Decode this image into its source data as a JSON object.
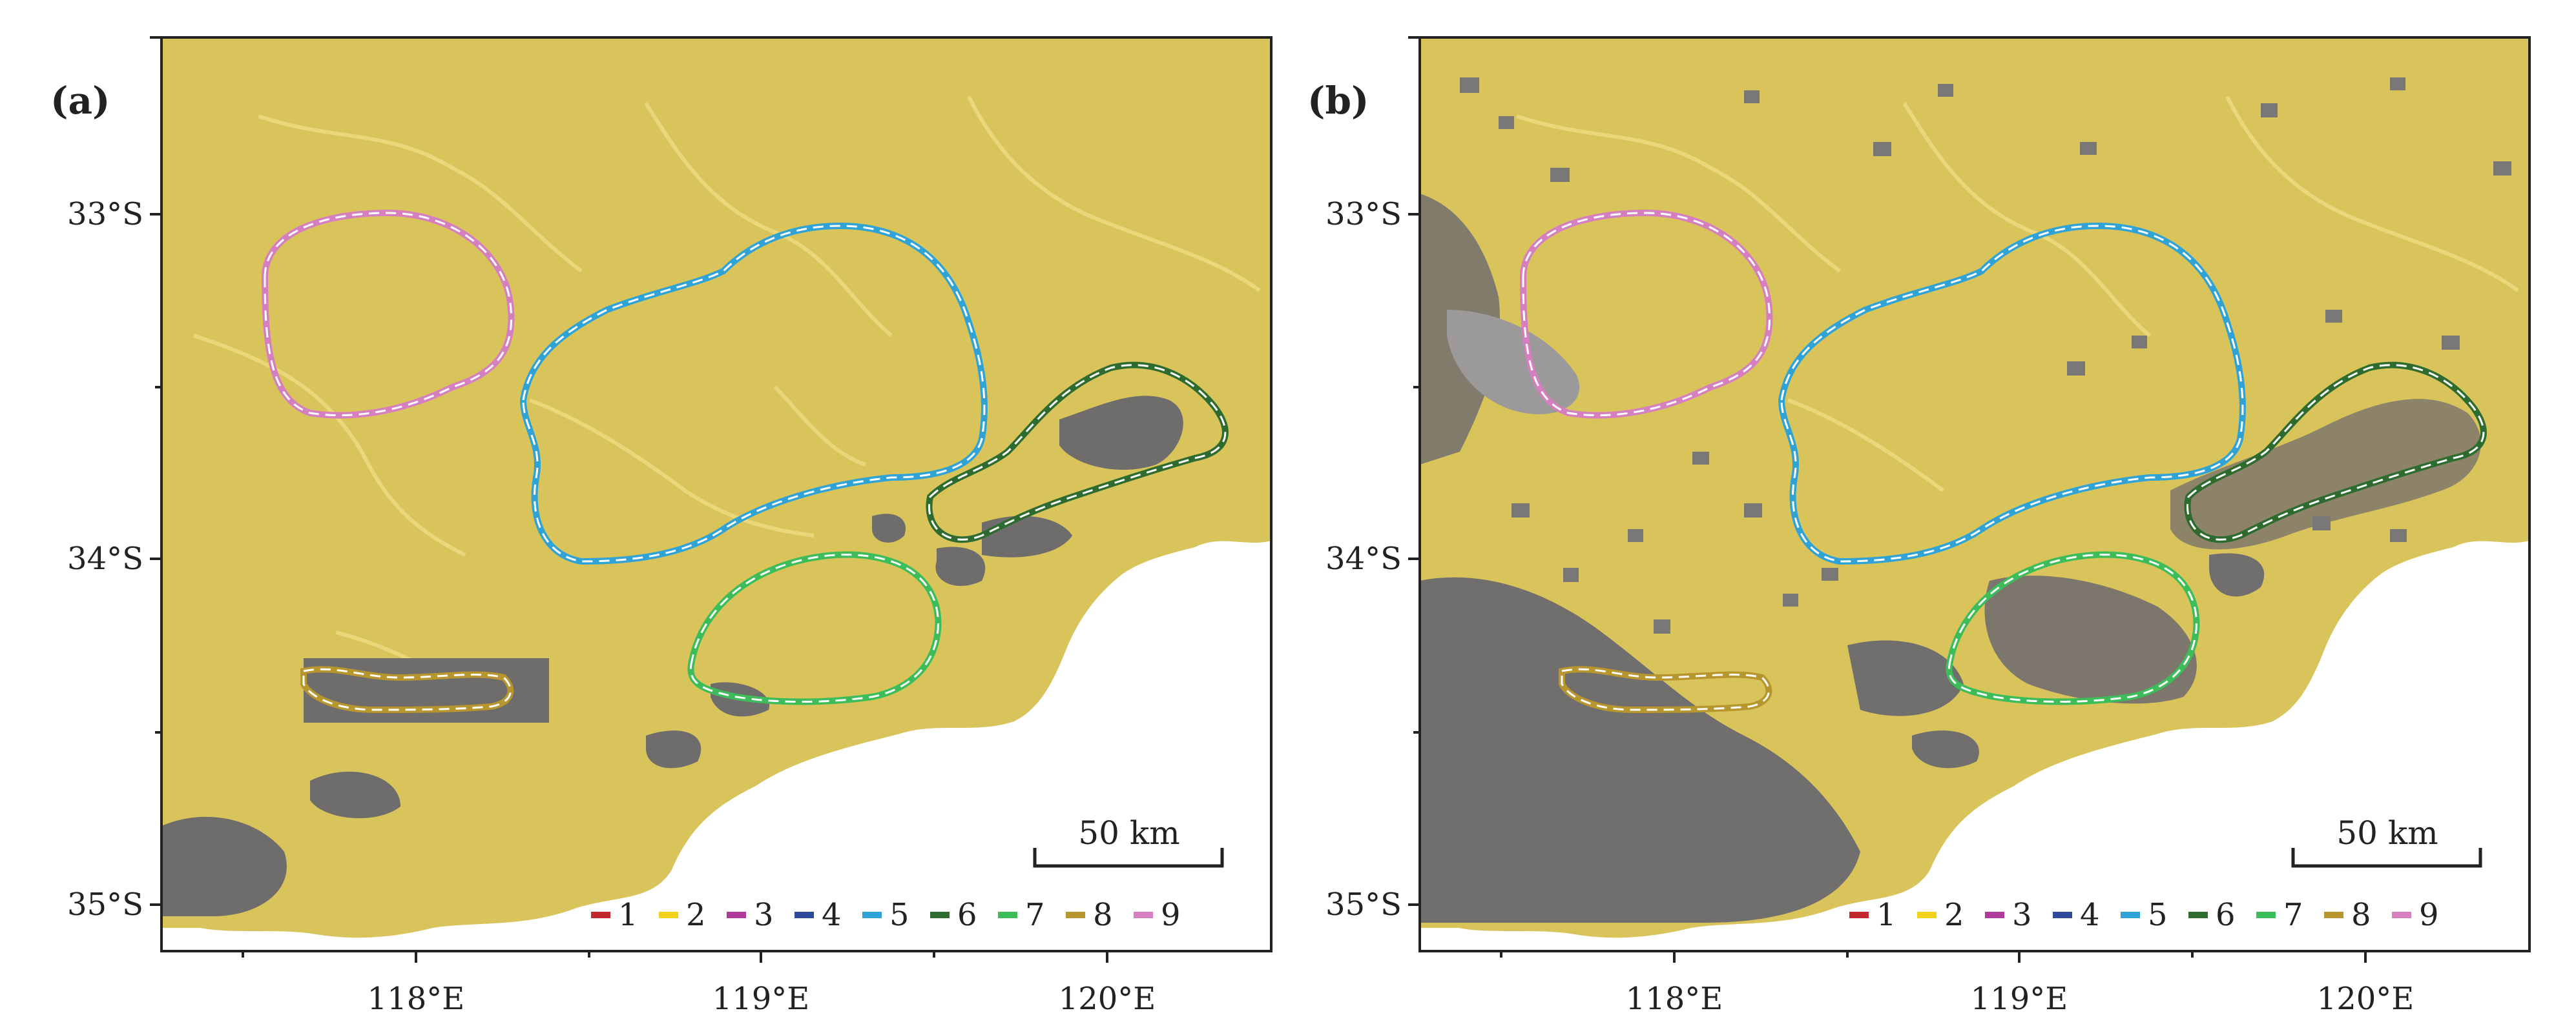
{
  "figure": {
    "panels": [
      {
        "label": "(a)",
        "scale_bar": "50 km",
        "land_cover": "yellow-dominant"
      },
      {
        "label": "(b)",
        "scale_bar": "50 km",
        "land_cover": "mixed-grey"
      }
    ],
    "lat_ticks": [
      "33°S",
      "34°S",
      "35°S"
    ],
    "lon_ticks": [
      "118°E",
      "119°E",
      "120°E"
    ],
    "legend": [
      {
        "label": "1",
        "color": "#c1272d"
      },
      {
        "label": "2",
        "color": "#f2d21b"
      },
      {
        "label": "3",
        "color": "#b03a9a"
      },
      {
        "label": "4",
        "color": "#2e4a9a"
      },
      {
        "label": "5",
        "color": "#2fa3d6"
      },
      {
        "label": "6",
        "color": "#2d6b2f"
      },
      {
        "label": "7",
        "color": "#3dbd5a"
      },
      {
        "label": "8",
        "color": "#b8962e"
      },
      {
        "label": "9",
        "color": "#d67fc0"
      }
    ],
    "regions": [
      {
        "id": "9",
        "color": "#d67fc0"
      },
      {
        "id": "5",
        "color": "#2fa3d6"
      },
      {
        "id": "6",
        "color": "#2d6b2f"
      },
      {
        "id": "7",
        "color": "#3dbd5a"
      },
      {
        "id": "8",
        "color": "#b8962e"
      }
    ],
    "colors": {
      "land_yellow": "#d9c45c",
      "land_yellow_light": "#e8d676",
      "terrain_grey": "#6f6c6c",
      "terrain_grey_dark": "#4e4c4c",
      "ocean": "#ffffff"
    }
  }
}
